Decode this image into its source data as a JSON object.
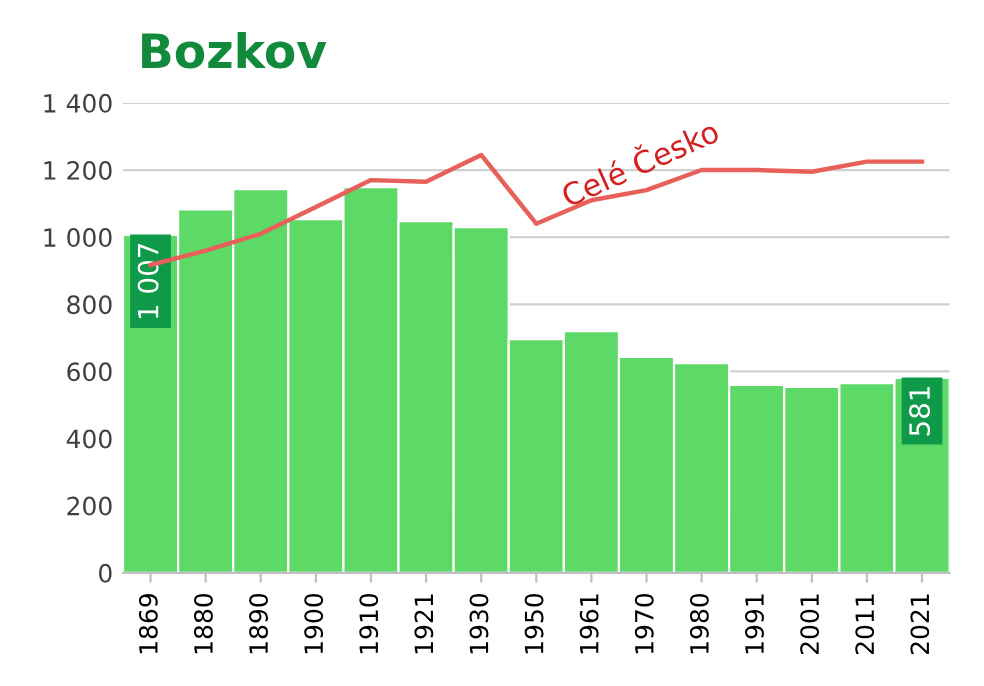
{
  "chart_data": {
    "type": "bar",
    "title": "Bozkov",
    "categories": [
      "1869",
      "1880",
      "1890",
      "1900",
      "1910",
      "1921",
      "1930",
      "1950",
      "1961",
      "1970",
      "1980",
      "1991",
      "2001",
      "2011",
      "2021"
    ],
    "series": [
      {
        "color": "#5cd966",
        "values": [
          1007,
          1083,
          1143,
          1054,
          1149,
          1048,
          1030,
          696,
          720,
          643,
          625,
          560,
          554,
          565,
          581
        ],
        "value_labels": [
          "1 007",
          null,
          null,
          null,
          null,
          null,
          null,
          null,
          null,
          null,
          null,
          null,
          null,
          null,
          "581"
        ]
      },
      {
        "type": "line",
        "name": "Celé Česko",
        "color": "#e8605a",
        "values": [
          917,
          960,
          1010,
          1090,
          1170,
          1165,
          1245,
          1040,
          1110,
          1140,
          1200,
          1200,
          1195,
          1225,
          1225
        ]
      }
    ],
    "ylim": [
      0,
      1400
    ],
    "yticks": [
      0,
      {
        "value": 200,
        "label": "200"
      },
      {
        "value": 400,
        "label": "400"
      },
      {
        "value": 600,
        "label": "600"
      },
      {
        "value": 800,
        "label": "800"
      },
      {
        "value": 1000,
        "label": "1 000"
      },
      {
        "value": 1200,
        "label": "1 200"
      },
      {
        "value": 1400,
        "label": "1 400"
      }
    ],
    "grid": "y",
    "legend": false
  }
}
